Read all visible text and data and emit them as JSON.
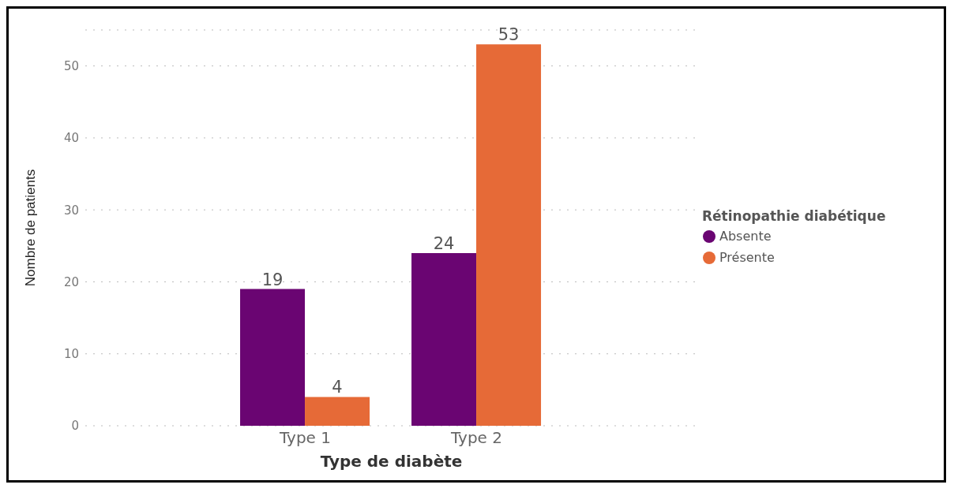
{
  "chart_data": {
    "type": "bar",
    "xlabel": "Type de diabète",
    "ylabel": "Nombre de patients",
    "legend_title": "Rétinopathie diabétique",
    "categories": [
      "Type 1",
      "Type 2"
    ],
    "series": [
      {
        "name": "Absente",
        "color": "#6a0572",
        "values": [
          19,
          24
        ]
      },
      {
        "name": "Présente",
        "color": "#e66a37",
        "values": [
          4,
          53
        ]
      }
    ],
    "ylim": [
      0,
      55
    ],
    "yticks": [
      0,
      10,
      20,
      30,
      40,
      50
    ],
    "grid": "y",
    "legend": "right",
    "data_labels": true
  }
}
